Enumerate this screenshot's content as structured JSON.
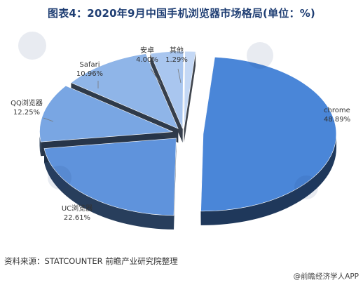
{
  "chart_data": {
    "type": "pie",
    "title": "图表4：2020年9月中国手机浏览器市场格局(单位：%)",
    "slices": [
      {
        "name": "chrome",
        "value": 48.89,
        "value_label": "48.89%",
        "color": "#4a86d8"
      },
      {
        "name": "UC浏览器",
        "value": 22.61,
        "value_label": "22.61%",
        "color": "#5f93dc"
      },
      {
        "name": "QQ浏览器",
        "value": 12.25,
        "value_label": "12.25%",
        "color": "#79a6e3"
      },
      {
        "name": "Safari",
        "value": 10.96,
        "value_label": "10.96%",
        "color": "#8fb5e8"
      },
      {
        "name": "安卓",
        "value": 4.0,
        "value_label": "4.00%",
        "color": "#a9c6ef"
      },
      {
        "name": "其他",
        "value": 1.29,
        "value_label": "1.29%",
        "color": "#c4d8f5"
      }
    ],
    "legend": "none",
    "style": "3d-exploded-pie"
  },
  "source": "资料来源：STATCOUNTER 前瞻产业研究院整理",
  "app_badge": "@前瞻经济学人APP"
}
